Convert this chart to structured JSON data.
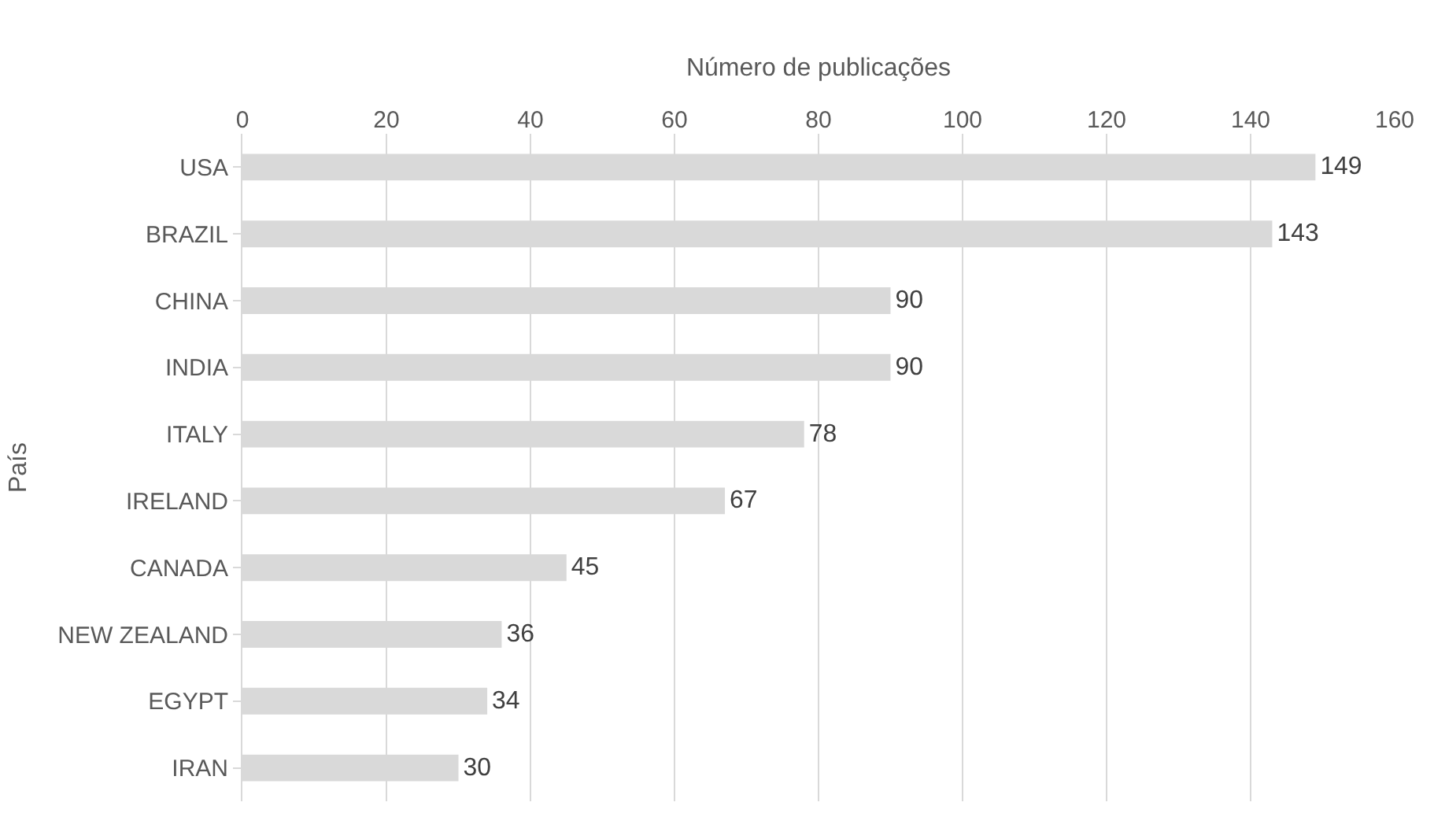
{
  "chart_data": {
    "type": "bar",
    "orientation": "horizontal",
    "xlabel": "Número de publicações",
    "ylabel": "País",
    "categories": [
      "USA",
      "BRAZIL",
      "CHINA",
      "INDIA",
      "ITALY",
      "IRELAND",
      "CANADA",
      "NEW ZEALAND",
      "EGYPT",
      "IRAN"
    ],
    "values": [
      149,
      143,
      90,
      90,
      78,
      67,
      45,
      36,
      34,
      30
    ],
    "color": "#d9d9d9",
    "xlim": [
      0,
      160
    ],
    "xticks": [
      0,
      20,
      40,
      60,
      80,
      100,
      120,
      140,
      160
    ],
    "grid": "x",
    "data_labels": true
  }
}
